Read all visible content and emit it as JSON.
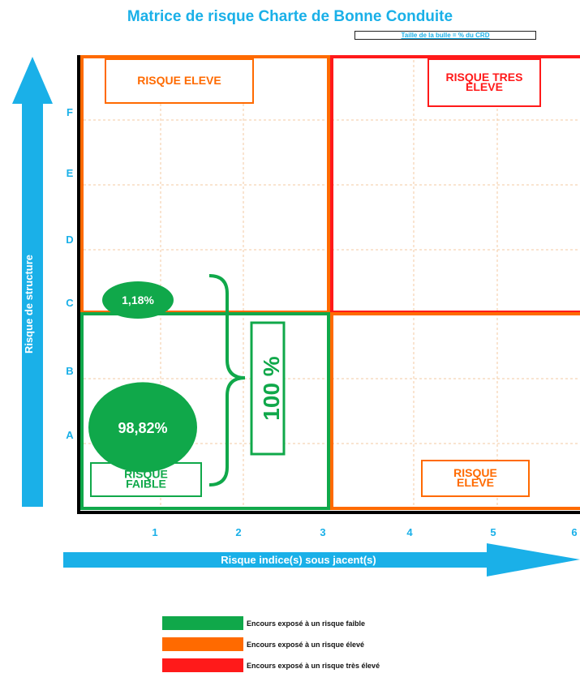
{
  "chart_data": {
    "type": "bubble-matrix",
    "title": "Matrice de risque Charte de Bonne Conduite",
    "subtitle": "Taille de la bulle = % du CRD",
    "xlabel": "Risque  indice(s) sous jacent(s)",
    "ylabel": "Risque de structure",
    "x_ticks": [
      "1",
      "2",
      "3",
      "4",
      "5",
      "6"
    ],
    "y_ticks": [
      "A",
      "B",
      "C",
      "D",
      "E",
      "F"
    ],
    "zones": [
      {
        "label": "RISQUE ELEVE",
        "color": "#ff6a00"
      },
      {
        "label": "RISQUE TRES ELEVE",
        "color": "#ff1a1a"
      },
      {
        "label": "RISQUE FAIBLE",
        "color": "#10a84a"
      },
      {
        "label": "RISQUE ELEVE",
        "color": "#ff6a00"
      }
    ],
    "bubbles": [
      {
        "x": 1,
        "y": "A",
        "value": 98.82,
        "label": "98,82%"
      },
      {
        "x": 1,
        "y": "C",
        "value": 1.18,
        "label": "1,18%"
      }
    ],
    "bracket_label": "100 %",
    "legend": [
      {
        "color": "#10a84a",
        "label": "Encours exposé à un risque faible"
      },
      {
        "color": "#ff6a00",
        "label": "Encours exposé à un risque élevé"
      },
      {
        "color": "#ff1a1a",
        "label": "Encours exposé à un risque très élevé"
      }
    ]
  }
}
